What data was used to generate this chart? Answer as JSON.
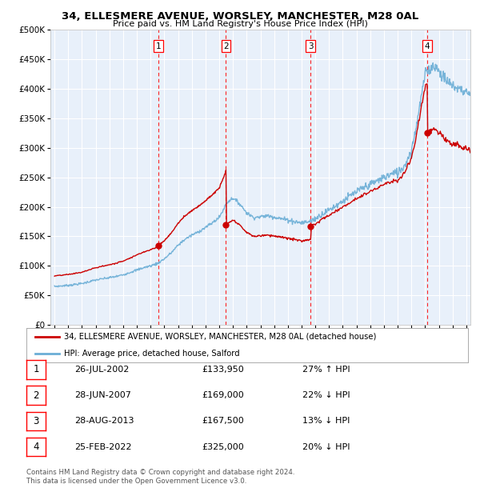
{
  "title1": "34, ELLESMERE AVENUE, WORSLEY, MANCHESTER, M28 0AL",
  "title2": "Price paid vs. HM Land Registry's House Price Index (HPI)",
  "legend_line1": "34, ELLESMERE AVENUE, WORSLEY, MANCHESTER, M28 0AL (detached house)",
  "legend_line2": "HPI: Average price, detached house, Salford",
  "footer1": "Contains HM Land Registry data © Crown copyright and database right 2024.",
  "footer2": "This data is licensed under the Open Government Licence v3.0.",
  "sales": [
    {
      "num": 1,
      "date_num": 2002.57,
      "price": 133950,
      "label": "26-JUL-2002",
      "pct": "27% ↑ HPI"
    },
    {
      "num": 2,
      "date_num": 2007.49,
      "price": 169000,
      "label": "28-JUN-2007",
      "pct": "22% ↓ HPI"
    },
    {
      "num": 3,
      "date_num": 2013.66,
      "price": 167500,
      "label": "28-AUG-2013",
      "pct": "13% ↓ HPI"
    },
    {
      "num": 4,
      "date_num": 2022.15,
      "price": 325000,
      "label": "25-FEB-2022",
      "pct": "20% ↓ HPI"
    }
  ],
  "hpi_color": "#6baed6",
  "sale_color": "#cc0000",
  "bg_color": "#ffffff",
  "plot_bg": "#e8f0fa",
  "ylim": [
    0,
    500000
  ],
  "yticks": [
    0,
    50000,
    100000,
    150000,
    200000,
    250000,
    300000,
    350000,
    400000,
    450000,
    500000
  ],
  "xlim_start": 1994.7,
  "xlim_end": 2025.3
}
